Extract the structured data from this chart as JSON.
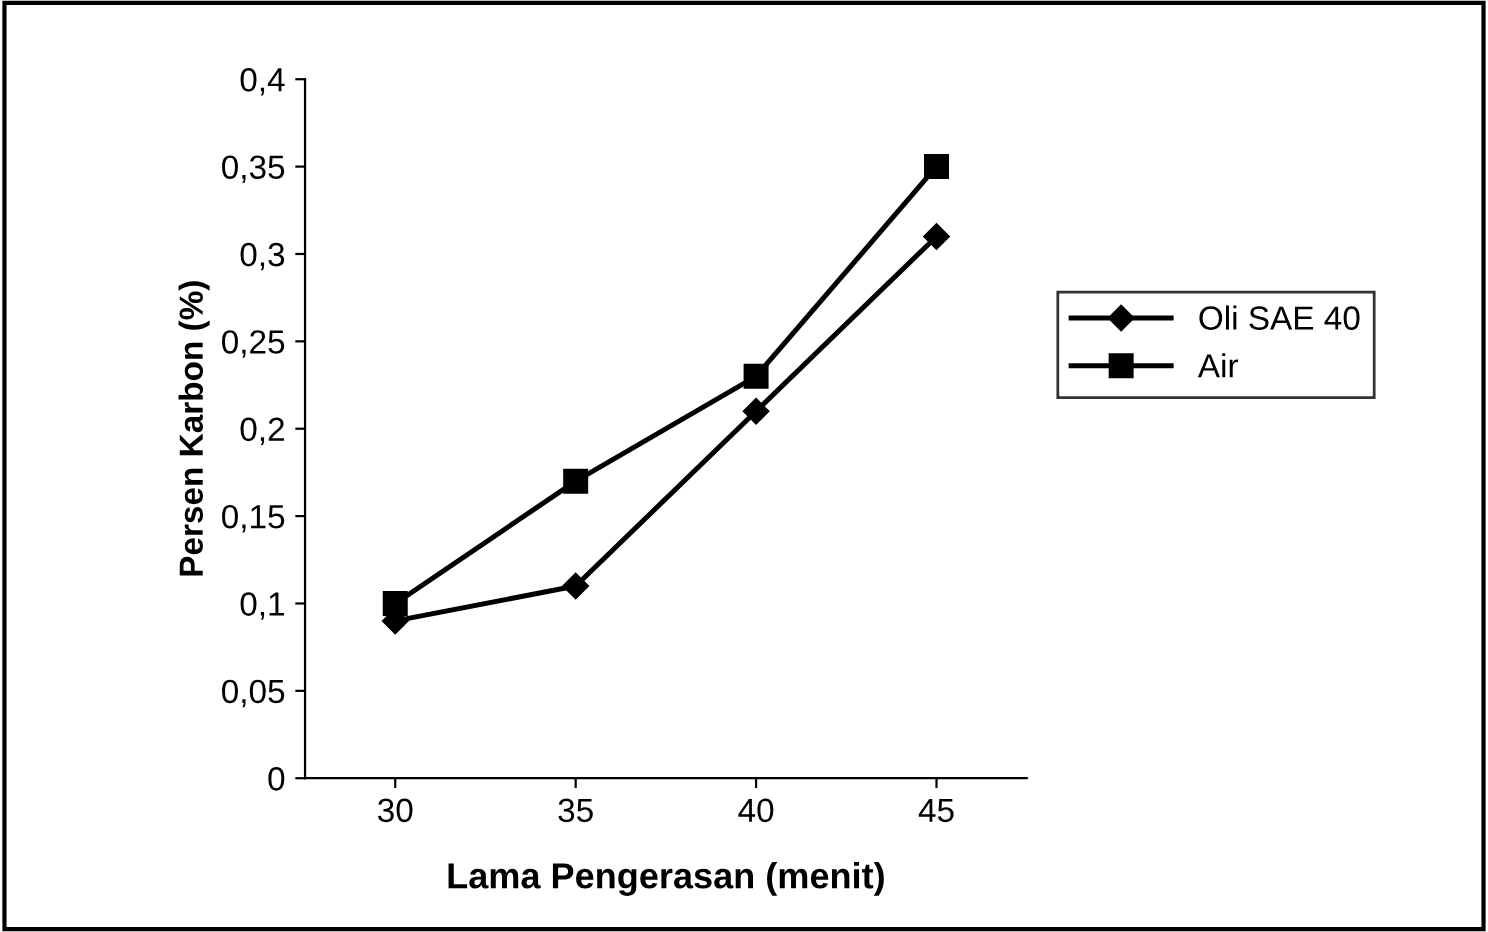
{
  "chart_data": {
    "type": "line",
    "xlabel": "Lama Pengerasan (menit)",
    "ylabel": "Persen Karbon (%)",
    "categories": [
      "30",
      "35",
      "40",
      "45"
    ],
    "series": [
      {
        "name": "Oli SAE 40",
        "color": "#000000",
        "marker": "diamond",
        "values": [
          0.09,
          0.11,
          0.21,
          0.31
        ]
      },
      {
        "name": "Air",
        "color": "#000000",
        "marker": "square",
        "values": [
          0.1,
          0.17,
          0.23,
          0.35
        ]
      }
    ],
    "ylim": [
      0,
      0.4
    ],
    "yticks": [
      0,
      {
        "value": 0.05,
        "label": "0,05"
      },
      {
        "value": 0.1,
        "label": "0,1"
      },
      {
        "value": 0.15,
        "label": "0,15"
      },
      {
        "value": 0.2,
        "label": "0,2"
      },
      {
        "value": 0.25,
        "label": "0,25"
      },
      {
        "value": 0.3,
        "label": "0,3"
      },
      {
        "value": 0.35,
        "label": "0,35"
      },
      {
        "value": 0.4,
        "label": "0,4"
      }
    ],
    "grid": false,
    "legend": "right",
    "line_style": "solid"
  }
}
